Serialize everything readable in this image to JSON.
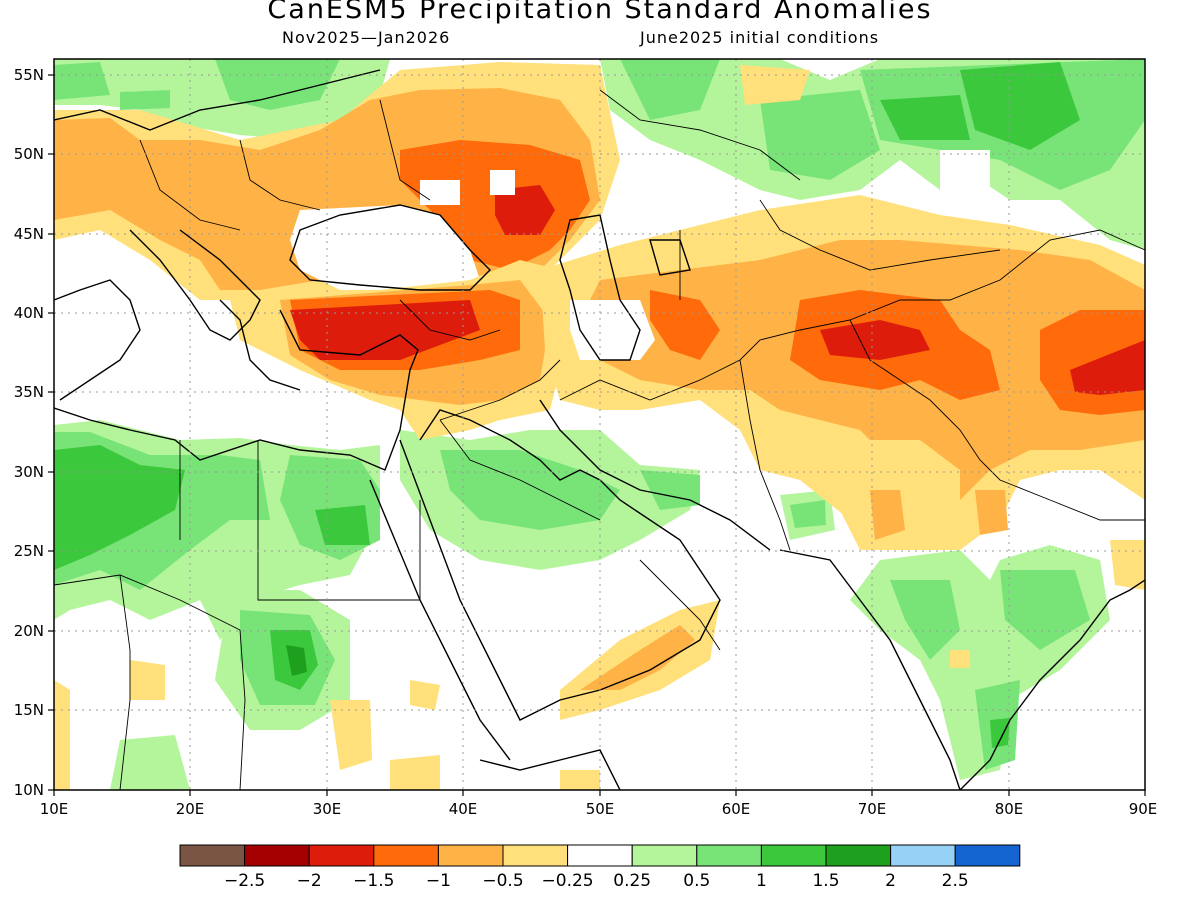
{
  "title": "CanESM5 Precipitation Standard Anomalies",
  "subtitle_left": "Nov2025—Jan2026",
  "subtitle_right": "June2025 initial conditions",
  "map": {
    "lon_range": [
      10,
      90
    ],
    "lat_range": [
      10,
      56
    ],
    "lon_ticks": [
      "10E",
      "20E",
      "30E",
      "40E",
      "50E",
      "60E",
      "70E",
      "80E",
      "90E"
    ],
    "lat_ticks": [
      "10N",
      "15N",
      "20N",
      "25N",
      "30N",
      "35N",
      "40N",
      "45N",
      "50N",
      "55N"
    ]
  },
  "colorbar": {
    "colors": [
      "#7a5543",
      "#a50000",
      "#de1c0c",
      "#ff6a0a",
      "#ffb246",
      "#ffe07a",
      "#ffffff",
      "#b4f59c",
      "#78e478",
      "#3cc83c",
      "#1ea01e",
      "#96d2f5",
      "#1464d2"
    ],
    "labels": [
      "−2.5",
      "−2",
      "−1.5",
      "−1",
      "−0.5",
      "−0.25",
      "0.25",
      "0.5",
      "1",
      "1.5",
      "2",
      "2.5"
    ]
  },
  "colors": {
    "red": "#de1c0c",
    "orange": "#ff6a0a",
    "light_orange": "#ffb246",
    "yellow": "#ffe07a",
    "light_green": "#b4f59c",
    "green": "#78e478",
    "mid_green": "#3cc83c",
    "dark_green": "#1ea01e"
  }
}
